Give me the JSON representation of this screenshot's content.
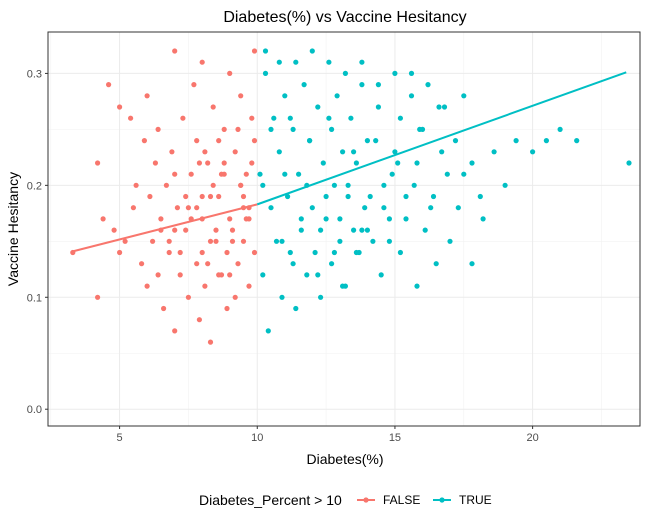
{
  "chart_data": {
    "type": "scatter",
    "title": "Diabetes(%) vs Vaccine Hesitancy",
    "xlabel": "Diabetes(%)",
    "ylabel": "Vaccine Hesitancy",
    "xlim": [
      2.4,
      23.9
    ],
    "ylim": [
      -0.015,
      0.337
    ],
    "x_ticks": [
      5,
      10,
      15,
      20
    ],
    "y_ticks": [
      0.0,
      0.1,
      0.2,
      0.3
    ],
    "x_tick_labels": [
      "5",
      "10",
      "15",
      "20"
    ],
    "y_tick_labels": [
      "0.0",
      "0.1",
      "0.2",
      "0.3"
    ],
    "grid": true,
    "legend": {
      "title": "Diabetes_Percent > 10",
      "position": "bottom",
      "entries": [
        "FALSE",
        "TRUE"
      ]
    },
    "colors": {
      "FALSE": "#F8766D",
      "TRUE": "#00BFC4"
    },
    "series": [
      {
        "name": "FALSE",
        "x": [
          3.3,
          4.2,
          4.2,
          4.4,
          4.6,
          4.8,
          5.0,
          5.0,
          5.2,
          5.4,
          5.5,
          5.6,
          5.8,
          5.9,
          6.0,
          6.0,
          6.1,
          6.2,
          6.3,
          6.4,
          6.4,
          6.5,
          6.6,
          6.7,
          6.8,
          6.9,
          7.0,
          7.0,
          7.1,
          7.2,
          7.3,
          7.4,
          7.5,
          7.6,
          7.7,
          7.8,
          7.8,
          7.9,
          8.0,
          8.0,
          8.1,
          8.2,
          8.3,
          8.4,
          8.5,
          8.6,
          8.7,
          8.8,
          8.9,
          9.0,
          9.1,
          9.2,
          9.3,
          9.4,
          9.5,
          9.6,
          9.7,
          9.8,
          9.9,
          9.9,
          8.0,
          8.3,
          8.6,
          9.0,
          9.4,
          9.8,
          7.0,
          7.5,
          8.2,
          8.8,
          9.5,
          6.8,
          7.4,
          8.1,
          8.9,
          9.6,
          6.5,
          7.2,
          7.9,
          8.6,
          9.3,
          7.0,
          7.6,
          8.4,
          9.1,
          9.7,
          7.8,
          8.5,
          9.2,
          9.9,
          8.0,
          8.7,
          9.4,
          8.3,
          9.0,
          9.7,
          8.8,
          9.5
        ],
        "y": [
          0.14,
          0.1,
          0.22,
          0.17,
          0.29,
          0.16,
          0.14,
          0.27,
          0.15,
          0.26,
          0.18,
          0.2,
          0.13,
          0.24,
          0.11,
          0.28,
          0.19,
          0.15,
          0.22,
          0.12,
          0.25,
          0.17,
          0.09,
          0.2,
          0.14,
          0.23,
          0.07,
          0.32,
          0.18,
          0.12,
          0.26,
          0.16,
          0.1,
          0.21,
          0.29,
          0.13,
          0.24,
          0.08,
          0.17,
          0.31,
          0.11,
          0.22,
          0.06,
          0.27,
          0.15,
          0.19,
          0.12,
          0.25,
          0.09,
          0.3,
          0.16,
          0.23,
          0.13,
          0.28,
          0.18,
          0.21,
          0.11,
          0.26,
          0.14,
          0.32,
          0.19,
          0.15,
          0.24,
          0.17,
          0.2,
          0.22,
          0.16,
          0.18,
          0.13,
          0.21,
          0.19,
          0.15,
          0.19,
          0.23,
          0.14,
          0.17,
          0.16,
          0.14,
          0.22,
          0.12,
          0.25,
          0.21,
          0.17,
          0.2,
          0.15,
          0.18,
          0.18,
          0.16,
          0.1,
          0.24,
          0.14,
          0.21,
          0.2,
          0.19,
          0.12,
          0.17,
          0.22,
          0.15
        ],
        "trend": [
          [
            3.3,
            0.141
          ],
          [
            10.0,
            0.183
          ]
        ]
      },
      {
        "name": "TRUE",
        "x": [
          10.1,
          10.2,
          10.3,
          10.4,
          10.5,
          10.6,
          10.7,
          10.8,
          10.9,
          11.0,
          11.1,
          11.2,
          11.3,
          11.4,
          11.5,
          11.6,
          11.7,
          11.8,
          11.9,
          12.0,
          12.1,
          12.2,
          12.3,
          12.4,
          12.5,
          12.6,
          12.7,
          12.8,
          12.9,
          13.0,
          13.1,
          13.2,
          13.3,
          13.4,
          13.5,
          13.6,
          13.7,
          13.8,
          13.9,
          14.0,
          14.2,
          14.4,
          14.6,
          14.8,
          15.0,
          15.2,
          15.4,
          15.6,
          15.8,
          16.0,
          16.3,
          16.6,
          16.9,
          17.2,
          17.5,
          17.8,
          18.1,
          18.6,
          19.0,
          19.4,
          20.0,
          20.5,
          21.0,
          21.6,
          23.5,
          10.3,
          10.8,
          11.4,
          12.0,
          12.6,
          13.2,
          13.8,
          14.4,
          15.0,
          15.6,
          16.2,
          16.8,
          10.5,
          11.2,
          11.9,
          12.7,
          13.5,
          14.3,
          15.1,
          15.9,
          16.7,
          17.5,
          10.2,
          11.0,
          11.8,
          12.5,
          13.3,
          14.1,
          14.9,
          15.7,
          16.4,
          17.3,
          18.2,
          11.6,
          12.3,
          13.0,
          13.8,
          14.6,
          15.4,
          16.1,
          17.0,
          10.9,
          12.8,
          14.0,
          15.2,
          16.5,
          11.3,
          12.2,
          13.6,
          14.8,
          13.1,
          14.5,
          15.8,
          17.8
        ],
        "y": [
          0.21,
          0.12,
          0.3,
          0.07,
          0.18,
          0.26,
          0.15,
          0.23,
          0.1,
          0.28,
          0.19,
          0.14,
          0.25,
          0.09,
          0.21,
          0.16,
          0.29,
          0.12,
          0.24,
          0.18,
          0.14,
          0.27,
          0.1,
          0.22,
          0.17,
          0.26,
          0.13,
          0.2,
          0.28,
          0.15,
          0.23,
          0.11,
          0.19,
          0.26,
          0.16,
          0.22,
          0.14,
          0.29,
          0.18,
          0.24,
          0.15,
          0.27,
          0.2,
          0.17,
          0.23,
          0.26,
          0.19,
          0.3,
          0.22,
          0.25,
          0.18,
          0.27,
          0.21,
          0.24,
          0.28,
          0.22,
          0.19,
          0.23,
          0.2,
          0.24,
          0.23,
          0.24,
          0.25,
          0.24,
          0.22,
          0.32,
          0.31,
          0.31,
          0.32,
          0.31,
          0.3,
          0.31,
          0.29,
          0.3,
          0.28,
          0.29,
          0.27,
          0.25,
          0.26,
          0.24,
          0.25,
          0.23,
          0.24,
          0.22,
          0.25,
          0.23,
          0.21,
          0.2,
          0.21,
          0.2,
          0.19,
          0.2,
          0.19,
          0.21,
          0.2,
          0.19,
          0.18,
          0.17,
          0.17,
          0.16,
          0.17,
          0.16,
          0.18,
          0.17,
          0.16,
          0.15,
          0.15,
          0.14,
          0.16,
          0.14,
          0.13,
          0.13,
          0.12,
          0.14,
          0.15,
          0.11,
          0.12,
          0.11,
          0.13
        ],
        "trend": [
          [
            10.0,
            0.183
          ],
          [
            23.4,
            0.301
          ]
        ]
      }
    ]
  }
}
